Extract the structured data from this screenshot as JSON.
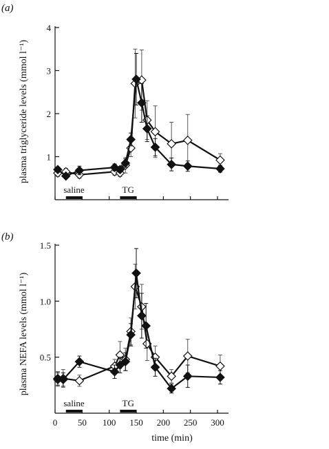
{
  "chart_data": [
    {
      "type": "line",
      "panel_label": "(a)",
      "ylabel": "plasma triglyceride levels (mmol l⁻¹)",
      "xlabel": "",
      "xlim": [
        0,
        320
      ],
      "ylim": [
        0,
        4
      ],
      "yticks": [
        "1",
        "2",
        "3",
        "4"
      ],
      "ytick_values": [
        1,
        2,
        3,
        4
      ],
      "xtick_values": [
        0,
        50,
        100,
        150,
        200,
        250,
        300
      ],
      "bars": [
        {
          "label": "saline",
          "start": 20,
          "end": 50
        },
        {
          "label": "TG",
          "start": 120,
          "end": 150
        }
      ],
      "series": [
        {
          "marker": "filled-diamond",
          "points": [
            {
              "x": 5,
              "y": 0.7,
              "err": 0.06
            },
            {
              "x": 20,
              "y": 0.55,
              "err": 0.05
            },
            {
              "x": 45,
              "y": 0.68,
              "err": 0.1
            },
            {
              "x": 110,
              "y": 0.75,
              "err": 0.08
            },
            {
              "x": 120,
              "y": 0.7,
              "err": 0.07
            },
            {
              "x": 130,
              "y": 0.85,
              "err": 0.1
            },
            {
              "x": 140,
              "y": 1.4,
              "err": 0.15
            },
            {
              "x": 150,
              "y": 2.8,
              "err": 0.6
            },
            {
              "x": 160,
              "y": 2.25,
              "err": 0.45
            },
            {
              "x": 170,
              "y": 1.65,
              "err": 0.3
            },
            {
              "x": 185,
              "y": 1.22,
              "err": 0.2
            },
            {
              "x": 215,
              "y": 0.82,
              "err": 0.15
            },
            {
              "x": 245,
              "y": 0.78,
              "err": 0.12
            },
            {
              "x": 305,
              "y": 0.72,
              "err": 0.08
            }
          ]
        },
        {
          "marker": "open-diamond",
          "points": [
            {
              "x": 5,
              "y": 0.62,
              "err": 0.08
            },
            {
              "x": 20,
              "y": 0.65,
              "err": 0.08
            },
            {
              "x": 45,
              "y": 0.58,
              "err": 0.08
            },
            {
              "x": 110,
              "y": 0.65,
              "err": 0.08
            },
            {
              "x": 120,
              "y": 0.62,
              "err": 0.08
            },
            {
              "x": 130,
              "y": 0.8,
              "err": 0.18
            },
            {
              "x": 140,
              "y": 1.2,
              "err": 0.2
            },
            {
              "x": 148,
              "y": 2.7,
              "err": 0.8
            },
            {
              "x": 160,
              "y": 2.78,
              "err": 0.7
            },
            {
              "x": 170,
              "y": 1.85,
              "err": 0.45
            },
            {
              "x": 185,
              "y": 1.58,
              "err": 0.6
            },
            {
              "x": 215,
              "y": 1.3,
              "err": 0.5
            },
            {
              "x": 245,
              "y": 1.38,
              "err": 0.6
            },
            {
              "x": 305,
              "y": 0.92,
              "err": 0.15
            }
          ]
        }
      ]
    },
    {
      "type": "line",
      "panel_label": "(b)",
      "ylabel": "plasma NEFA levels (mmol l⁻¹)",
      "xlabel": "time (min)",
      "xlim": [
        0,
        320
      ],
      "ylim": [
        0,
        1.5
      ],
      "yticks": [
        "0.5",
        "1.0",
        "1.5"
      ],
      "ytick_values": [
        0.5,
        1.0,
        1.5
      ],
      "xticks": [
        "0",
        "50",
        "100",
        "150",
        "200",
        "250",
        "300"
      ],
      "xtick_values": [
        0,
        50,
        100,
        150,
        200,
        250,
        300
      ],
      "bars": [
        {
          "label": "saline",
          "start": 20,
          "end": 50
        },
        {
          "label": "TG",
          "start": 120,
          "end": 150
        }
      ],
      "series": [
        {
          "marker": "filled-diamond",
          "points": [
            {
              "x": 5,
              "y": 0.31,
              "err": 0.06
            },
            {
              "x": 15,
              "y": 0.3,
              "err": 0.06
            },
            {
              "x": 45,
              "y": 0.46,
              "err": 0.05
            },
            {
              "x": 110,
              "y": 0.37,
              "err": 0.06
            },
            {
              "x": 120,
              "y": 0.43,
              "err": 0.07
            },
            {
              "x": 130,
              "y": 0.46,
              "err": 0.08
            },
            {
              "x": 140,
              "y": 0.7,
              "err": 0.1
            },
            {
              "x": 150,
              "y": 1.25,
              "err": 0.22
            },
            {
              "x": 160,
              "y": 0.87,
              "err": 0.2
            },
            {
              "x": 168,
              "y": 0.78,
              "err": 0.2
            },
            {
              "x": 185,
              "y": 0.41,
              "err": 0.08
            },
            {
              "x": 215,
              "y": 0.22,
              "err": 0.04
            },
            {
              "x": 245,
              "y": 0.33,
              "err": 0.1
            },
            {
              "x": 305,
              "y": 0.32,
              "err": 0.06
            }
          ]
        },
        {
          "marker": "open-diamond",
          "points": [
            {
              "x": 5,
              "y": 0.3,
              "err": 0.06
            },
            {
              "x": 15,
              "y": 0.31,
              "err": 0.08
            },
            {
              "x": 45,
              "y": 0.29,
              "err": 0.05
            },
            {
              "x": 110,
              "y": 0.42,
              "err": 0.06
            },
            {
              "x": 120,
              "y": 0.52,
              "err": 0.12
            },
            {
              "x": 130,
              "y": 0.48,
              "err": 0.1
            },
            {
              "x": 140,
              "y": 0.73,
              "err": 0.12
            },
            {
              "x": 148,
              "y": 1.13,
              "err": 0.2
            },
            {
              "x": 160,
              "y": 0.95,
              "err": 0.2
            },
            {
              "x": 170,
              "y": 0.62,
              "err": 0.15
            },
            {
              "x": 185,
              "y": 0.5,
              "err": 0.1
            },
            {
              "x": 215,
              "y": 0.33,
              "err": 0.06
            },
            {
              "x": 245,
              "y": 0.51,
              "err": 0.15
            },
            {
              "x": 305,
              "y": 0.42,
              "err": 0.1
            }
          ]
        }
      ]
    }
  ]
}
